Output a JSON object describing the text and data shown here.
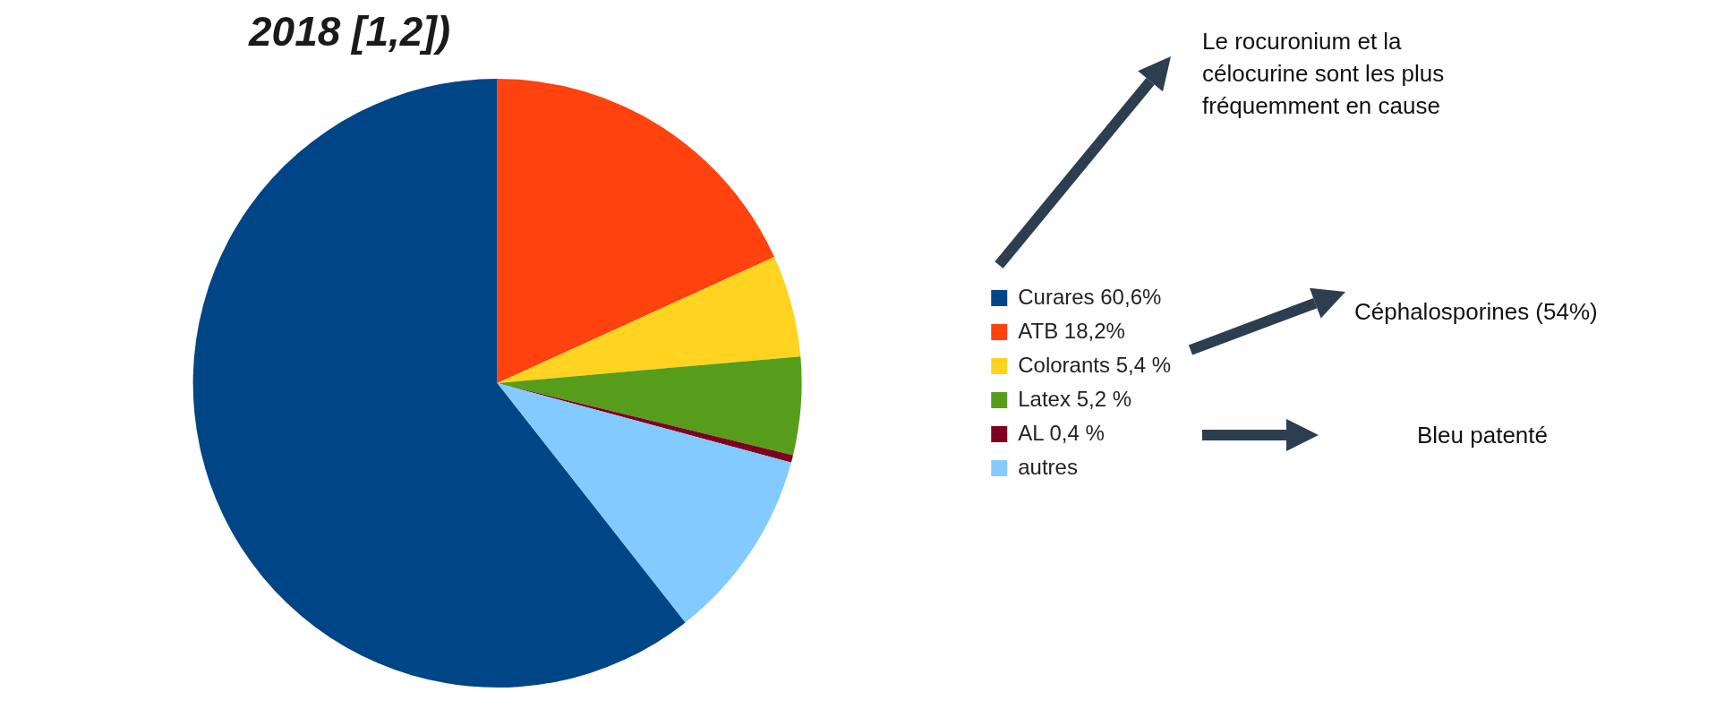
{
  "chart_data": {
    "type": "pie",
    "title": "2018 [1,2])",
    "categories": [
      "Curares 60,6%",
      "ATB 18,2%",
      "Colorants 5,4 %",
      "Latex 5,2 %",
      "AL 0,4 %",
      "autres"
    ],
    "values": [
      60.6,
      18.2,
      5.4,
      5.2,
      0.4,
      10.2
    ],
    "colors": [
      "#004586",
      "#ff420e",
      "#ffd320",
      "#579d1c",
      "#7e0021",
      "#83caff"
    ],
    "legend": "right",
    "annotations": [
      "Le rocuronium et la célocurine sont les plus fréquemment en cause",
      "Céphalosporines (54%)",
      "Bleu patenté"
    ]
  }
}
